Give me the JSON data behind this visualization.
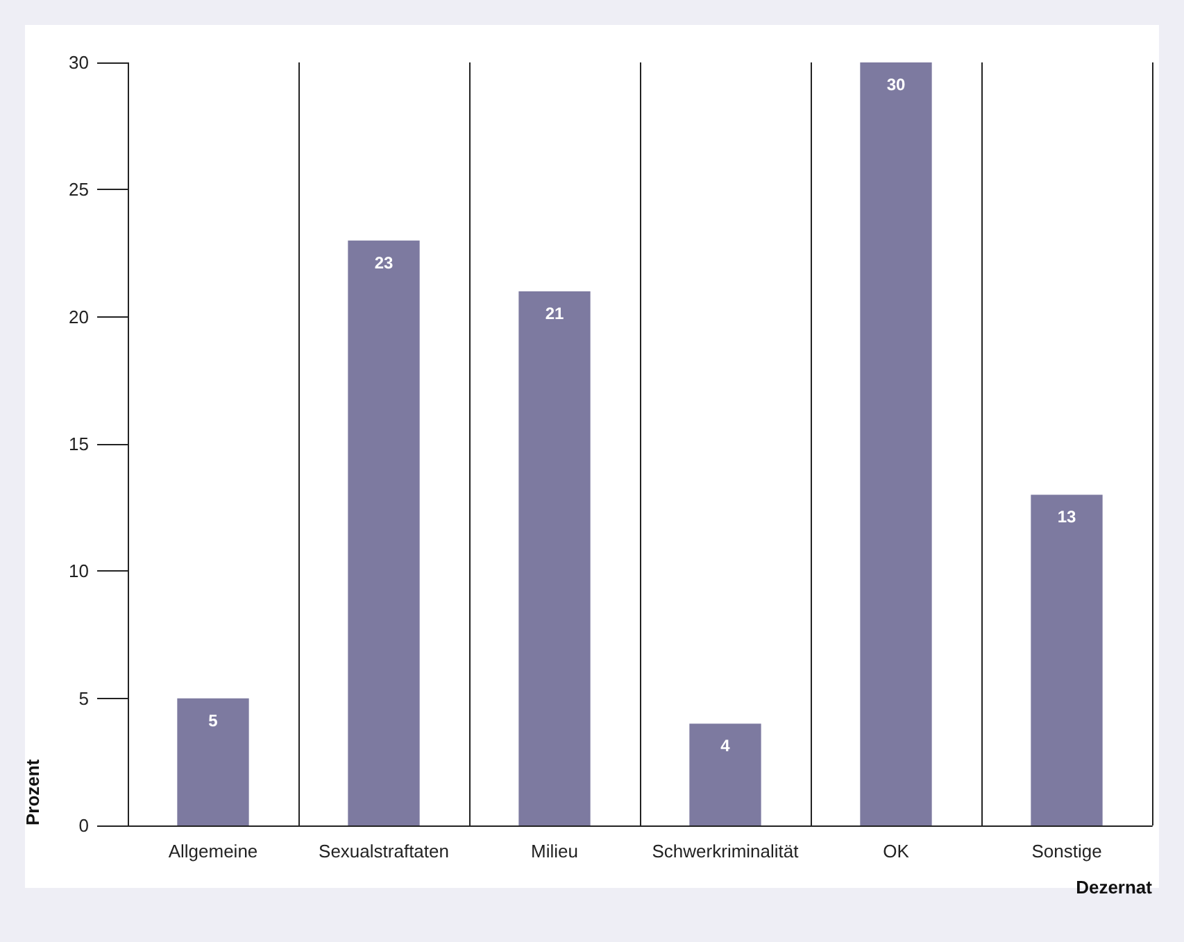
{
  "chart_data": {
    "type": "bar",
    "xlabel": "Dezernat",
    "ylabel": "Prozent",
    "categories": [
      "Allgemeine",
      "Sexualstraftaten",
      "Milieu",
      "Schwerkriminalität",
      "OK",
      "Sonstige"
    ],
    "values": [
      5,
      23,
      21,
      4,
      30,
      13
    ],
    "color": "#7d7aa0",
    "ylim": [
      0,
      30
    ],
    "yticks": [
      0,
      5,
      10,
      15,
      20,
      25,
      30
    ],
    "grid": "x",
    "data_labels": true
  }
}
